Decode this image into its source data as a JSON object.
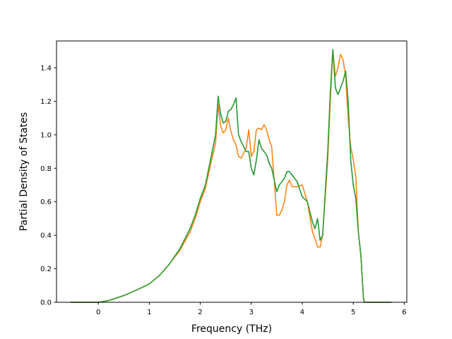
{
  "chart_data": {
    "type": "line",
    "title": "",
    "xlabel": "Frequency (THz)",
    "ylabel": "Partial Density of States",
    "xlim": [
      -0.82,
      6.05
    ],
    "ylim": [
      0.0,
      1.56
    ],
    "xticks": [
      0,
      1,
      2,
      3,
      4,
      5,
      6
    ],
    "yticks": [
      0.0,
      0.2,
      0.4,
      0.6,
      0.8,
      1.0,
      1.2,
      1.4
    ],
    "xtick_labels": [
      "0",
      "1",
      "2",
      "3",
      "4",
      "5",
      "6"
    ],
    "ytick_labels": [
      "0.0",
      "0.2",
      "0.4",
      "0.6",
      "0.8",
      "1.0",
      "1.2",
      "1.4"
    ],
    "grid": false,
    "legend": "none",
    "series": [
      {
        "color": "#1f77b4",
        "x": [
          -0.55,
          0.0,
          0.2,
          0.5,
          0.8,
          1.0,
          1.2,
          1.4,
          1.6,
          1.8,
          1.9,
          2.0,
          2.1,
          2.2,
          2.3,
          2.35,
          2.4,
          2.45,
          2.5,
          2.55,
          2.6,
          2.65,
          2.7,
          2.75,
          2.8,
          2.9,
          2.95,
          3.0,
          3.05,
          3.1,
          3.15,
          3.2,
          3.25,
          3.3,
          3.35,
          3.4,
          3.5,
          3.55,
          3.6,
          3.65,
          3.7,
          3.75,
          3.8,
          3.9,
          4.0,
          4.1,
          4.2,
          4.25,
          4.3,
          4.35,
          4.4,
          4.5,
          4.55,
          4.6,
          4.65,
          4.7,
          4.75,
          4.8,
          4.85,
          4.9,
          4.95,
          5.0,
          5.05,
          5.1,
          5.15,
          5.2,
          5.22,
          5.25,
          5.3,
          5.75
        ],
        "y": [
          0.0,
          0.0,
          0.01,
          0.04,
          0.08,
          0.11,
          0.16,
          0.23,
          0.32,
          0.44,
          0.52,
          0.62,
          0.7,
          0.85,
          1.0,
          1.23,
          1.12,
          1.07,
          1.08,
          1.14,
          1.15,
          1.18,
          1.22,
          1.0,
          0.96,
          0.9,
          0.9,
          0.8,
          0.76,
          0.85,
          0.97,
          0.92,
          0.9,
          0.88,
          0.83,
          0.8,
          0.66,
          0.7,
          0.72,
          0.74,
          0.78,
          0.78,
          0.76,
          0.72,
          0.63,
          0.6,
          0.48,
          0.44,
          0.5,
          0.37,
          0.4,
          0.9,
          1.25,
          1.51,
          1.28,
          1.24,
          1.28,
          1.32,
          1.38,
          1.2,
          0.85,
          0.7,
          0.62,
          0.42,
          0.28,
          0.02,
          0.0,
          0.0,
          0.0,
          0.0
        ]
      },
      {
        "color": "#ff7f0e",
        "x": [
          -0.55,
          0.0,
          0.2,
          0.5,
          0.8,
          1.0,
          1.2,
          1.4,
          1.6,
          1.8,
          1.9,
          2.0,
          2.1,
          2.2,
          2.3,
          2.35,
          2.4,
          2.45,
          2.5,
          2.55,
          2.6,
          2.65,
          2.7,
          2.75,
          2.8,
          2.9,
          2.95,
          3.0,
          3.05,
          3.1,
          3.15,
          3.2,
          3.25,
          3.3,
          3.35,
          3.4,
          3.5,
          3.55,
          3.6,
          3.65,
          3.7,
          3.75,
          3.8,
          3.9,
          4.0,
          4.1,
          4.2,
          4.25,
          4.3,
          4.35,
          4.4,
          4.5,
          4.55,
          4.6,
          4.65,
          4.7,
          4.75,
          4.8,
          4.85,
          4.9,
          4.95,
          5.0,
          5.05,
          5.1,
          5.15,
          5.2,
          5.22,
          5.25,
          5.3,
          5.75
        ],
        "y": [
          0.0,
          0.0,
          0.01,
          0.04,
          0.08,
          0.11,
          0.16,
          0.23,
          0.31,
          0.42,
          0.5,
          0.6,
          0.68,
          0.82,
          0.95,
          1.18,
          1.05,
          1.01,
          1.03,
          1.1,
          1.02,
          0.97,
          0.94,
          0.87,
          0.86,
          0.92,
          1.03,
          0.87,
          0.9,
          1.03,
          1.04,
          1.03,
          1.06,
          1.03,
          0.97,
          0.93,
          0.52,
          0.52,
          0.55,
          0.6,
          0.7,
          0.73,
          0.69,
          0.69,
          0.7,
          0.6,
          0.42,
          0.38,
          0.33,
          0.33,
          0.4,
          0.85,
          1.2,
          1.5,
          1.35,
          1.4,
          1.48,
          1.45,
          1.35,
          1.1,
          0.93,
          0.85,
          0.75,
          0.42,
          0.27,
          0.03,
          0.0,
          0.0,
          0.0,
          0.0
        ]
      },
      {
        "color": "#2ca02c",
        "x": [
          -0.55,
          0.0,
          0.2,
          0.5,
          0.8,
          1.0,
          1.2,
          1.4,
          1.6,
          1.8,
          1.9,
          2.0,
          2.1,
          2.2,
          2.3,
          2.35,
          2.4,
          2.45,
          2.5,
          2.55,
          2.6,
          2.65,
          2.7,
          2.75,
          2.8,
          2.9,
          2.95,
          3.0,
          3.05,
          3.1,
          3.15,
          3.2,
          3.25,
          3.3,
          3.35,
          3.4,
          3.5,
          3.55,
          3.6,
          3.65,
          3.7,
          3.75,
          3.8,
          3.9,
          4.0,
          4.1,
          4.2,
          4.25,
          4.3,
          4.35,
          4.4,
          4.5,
          4.55,
          4.6,
          4.65,
          4.7,
          4.75,
          4.8,
          4.85,
          4.9,
          4.95,
          5.0,
          5.05,
          5.1,
          5.15,
          5.2,
          5.22,
          5.25,
          5.3,
          5.75
        ],
        "y": [
          0.0,
          0.0,
          0.01,
          0.04,
          0.08,
          0.11,
          0.16,
          0.23,
          0.32,
          0.44,
          0.52,
          0.62,
          0.7,
          0.85,
          1.0,
          1.23,
          1.12,
          1.07,
          1.08,
          1.14,
          1.15,
          1.18,
          1.22,
          1.0,
          0.96,
          0.9,
          0.9,
          0.8,
          0.76,
          0.85,
          0.97,
          0.92,
          0.9,
          0.88,
          0.83,
          0.8,
          0.66,
          0.7,
          0.72,
          0.74,
          0.78,
          0.78,
          0.76,
          0.72,
          0.63,
          0.6,
          0.48,
          0.44,
          0.5,
          0.37,
          0.4,
          0.9,
          1.25,
          1.51,
          1.28,
          1.24,
          1.28,
          1.32,
          1.38,
          1.2,
          0.85,
          0.7,
          0.62,
          0.42,
          0.28,
          0.02,
          0.0,
          0.0,
          0.0,
          0.0
        ]
      }
    ]
  }
}
